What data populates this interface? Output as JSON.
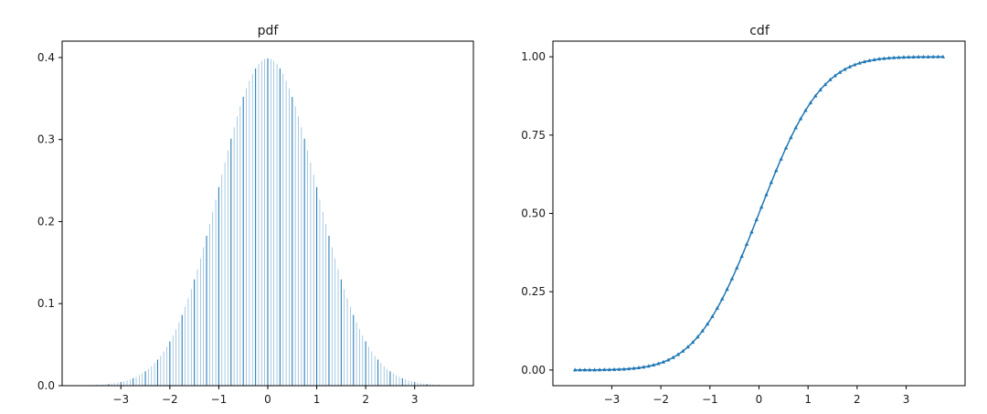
{
  "chart_data": [
    {
      "type": "bar",
      "title": "pdf",
      "xlabel": "",
      "ylabel": "",
      "x_range": [
        -3.75,
        3.75
      ],
      "bin_width": 0.0625,
      "xlim": [
        -4.2,
        4.2
      ],
      "ylim": [
        0,
        0.42
      ],
      "x_ticks": [
        -3,
        -2,
        -1,
        0,
        1,
        2,
        3
      ],
      "x_tick_labels": [
        "−3",
        "−2",
        "−1",
        "0",
        "1",
        "2",
        "3"
      ],
      "y_ticks": [
        0.0,
        0.1,
        0.2,
        0.3,
        0.4
      ],
      "y_tick_labels": [
        "0.0",
        "0.1",
        "0.2",
        "0.3",
        "0.4"
      ],
      "series": [
        {
          "distribution": "standard normal pdf",
          "mean": 0,
          "std": 1,
          "color": "#1f77b4"
        }
      ],
      "grid": false,
      "legend": "none"
    },
    {
      "type": "line",
      "title": "cdf",
      "xlabel": "",
      "ylabel": "",
      "x_range": [
        -3.75,
        3.75
      ],
      "marker_step": 0.1,
      "marker": "triangle-up",
      "xlim": [
        -4.2,
        4.2
      ],
      "ylim": [
        -0.05,
        1.05
      ],
      "x_ticks": [
        -3,
        -2,
        -1,
        0,
        1,
        2,
        3
      ],
      "x_tick_labels": [
        "−3",
        "−2",
        "−1",
        "0",
        "1",
        "2",
        "3"
      ],
      "y_ticks": [
        0.0,
        0.25,
        0.5,
        0.75,
        1.0
      ],
      "y_tick_labels": [
        "0.00",
        "0.25",
        "0.50",
        "0.75",
        "1.00"
      ],
      "series": [
        {
          "distribution": "standard normal cdf",
          "mean": 0,
          "std": 1,
          "color": "#1f77b4"
        }
      ],
      "grid": false,
      "legend": "none"
    }
  ]
}
